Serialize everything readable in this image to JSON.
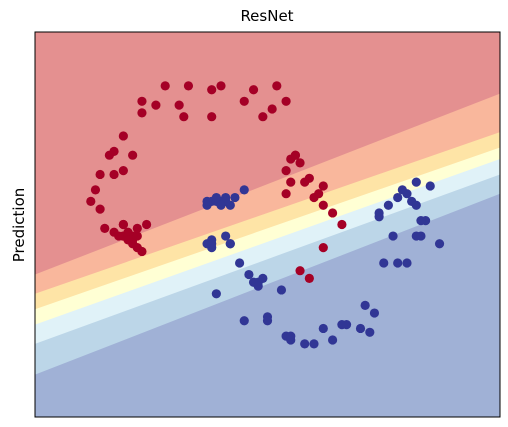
{
  "chart_data": {
    "type": "scatter",
    "title": "ResNet",
    "xlabel": "",
    "ylabel": "Prediction",
    "xlim": [
      0,
      100
    ],
    "ylim": [
      0,
      100
    ],
    "grid": false,
    "legend": "none",
    "colors": {
      "class_0": "#a50026",
      "class_1": "#313695",
      "region_levels": [
        "#a0b1d6",
        "#bcd6e8",
        "#e0f2f8",
        "#ffffd4",
        "#fee4a6",
        "#f9b79c",
        "#e49090"
      ]
    },
    "decision_boundaries": [
      {
        "name": "level-1",
        "x": [
          0,
          100
        ],
        "y": [
          11,
          58
        ]
      },
      {
        "name": "level-2",
        "x": [
          0,
          100
        ],
        "y": [
          19,
          63
        ]
      },
      {
        "name": "level-3",
        "x": [
          0,
          100
        ],
        "y": [
          24,
          67
        ]
      },
      {
        "name": "level-4",
        "x": [
          0,
          100
        ],
        "y": [
          28,
          70
        ]
      },
      {
        "name": "level-5",
        "x": [
          0,
          100
        ],
        "y": [
          32,
          74
        ]
      },
      {
        "name": "level-6",
        "x": [
          0,
          100
        ],
        "y": [
          37,
          84
        ]
      }
    ],
    "series": [
      {
        "class": "class_0",
        "points": [
          [
            31,
            81
          ],
          [
            28,
            86
          ],
          [
            26,
            81
          ],
          [
            23,
            79
          ],
          [
            19,
            73
          ],
          [
            17,
            69
          ],
          [
            16,
            68
          ],
          [
            14,
            63
          ],
          [
            17,
            63
          ],
          [
            19,
            64
          ],
          [
            13,
            59
          ],
          [
            21,
            68
          ],
          [
            12,
            56
          ],
          [
            14,
            54
          ],
          [
            19,
            47
          ],
          [
            22,
            47
          ],
          [
            23,
            82
          ],
          [
            33,
            86
          ],
          [
            32,
            78
          ],
          [
            38,
            78
          ],
          [
            38,
            85
          ],
          [
            40,
            86
          ],
          [
            47,
            85
          ],
          [
            45,
            82
          ],
          [
            49,
            78
          ],
          [
            52,
            86
          ],
          [
            54,
            82
          ],
          [
            51,
            80
          ],
          [
            57,
            66
          ],
          [
            59,
            62
          ],
          [
            55,
            67
          ],
          [
            62,
            60
          ],
          [
            61,
            58
          ],
          [
            56,
            68
          ],
          [
            64,
            53
          ],
          [
            66,
            50
          ],
          [
            60,
            57
          ],
          [
            58,
            61
          ],
          [
            56,
            68
          ],
          [
            62,
            55
          ],
          [
            23,
            43
          ],
          [
            22,
            44
          ],
          [
            21,
            46
          ],
          [
            24,
            50
          ],
          [
            19,
            50
          ],
          [
            17,
            48
          ],
          [
            15,
            49
          ],
          [
            20,
            48
          ],
          [
            57,
            38
          ],
          [
            59,
            36
          ],
          [
            62,
            44
          ],
          [
            54,
            64
          ],
          [
            55,
            61
          ],
          [
            54,
            58
          ],
          [
            19,
            47
          ],
          [
            21,
            45
          ],
          [
            21,
            47
          ],
          [
            22,
            49
          ],
          [
            20,
            47
          ],
          [
            18,
            47
          ],
          [
            19,
            50
          ],
          [
            20,
            46
          ]
        ]
      },
      {
        "class": "class_1",
        "points": [
          [
            37,
            45
          ],
          [
            38,
            46
          ],
          [
            38,
            44
          ],
          [
            41,
            47
          ],
          [
            37,
            55
          ],
          [
            40,
            56
          ],
          [
            41,
            56
          ],
          [
            40,
            56
          ],
          [
            41,
            57
          ],
          [
            38,
            56
          ],
          [
            43,
            57
          ],
          [
            42,
            45
          ],
          [
            42,
            55
          ],
          [
            45,
            59
          ],
          [
            39,
            56
          ],
          [
            38,
            45
          ],
          [
            42,
            45
          ],
          [
            44,
            40
          ],
          [
            48,
            35
          ],
          [
            47,
            35
          ],
          [
            46,
            37
          ],
          [
            48,
            34
          ],
          [
            49,
            36
          ],
          [
            53,
            33
          ],
          [
            39,
            32
          ],
          [
            45,
            25
          ],
          [
            50,
            26
          ],
          [
            50,
            25
          ],
          [
            54,
            21
          ],
          [
            55,
            20
          ],
          [
            55,
            21
          ],
          [
            58,
            19
          ],
          [
            60,
            19
          ],
          [
            62,
            23
          ],
          [
            64,
            20
          ],
          [
            66,
            24
          ],
          [
            67,
            24
          ],
          [
            70,
            23
          ],
          [
            72,
            22
          ],
          [
            71,
            29
          ],
          [
            73,
            27
          ],
          [
            75,
            40
          ],
          [
            78,
            40
          ],
          [
            77,
            47
          ],
          [
            80,
            40
          ],
          [
            82,
            47
          ],
          [
            84,
            51
          ],
          [
            83,
            47
          ],
          [
            87,
            45
          ],
          [
            81,
            56
          ],
          [
            80,
            58
          ],
          [
            74,
            53
          ],
          [
            78,
            57
          ],
          [
            82,
            55
          ],
          [
            83,
            51
          ],
          [
            85,
            60
          ],
          [
            82,
            61
          ],
          [
            79,
            59
          ],
          [
            76,
            55
          ],
          [
            74,
            52
          ],
          [
            41,
            56
          ],
          [
            39,
            57
          ],
          [
            37,
            56
          ],
          [
            40,
            55
          ]
        ]
      }
    ]
  }
}
